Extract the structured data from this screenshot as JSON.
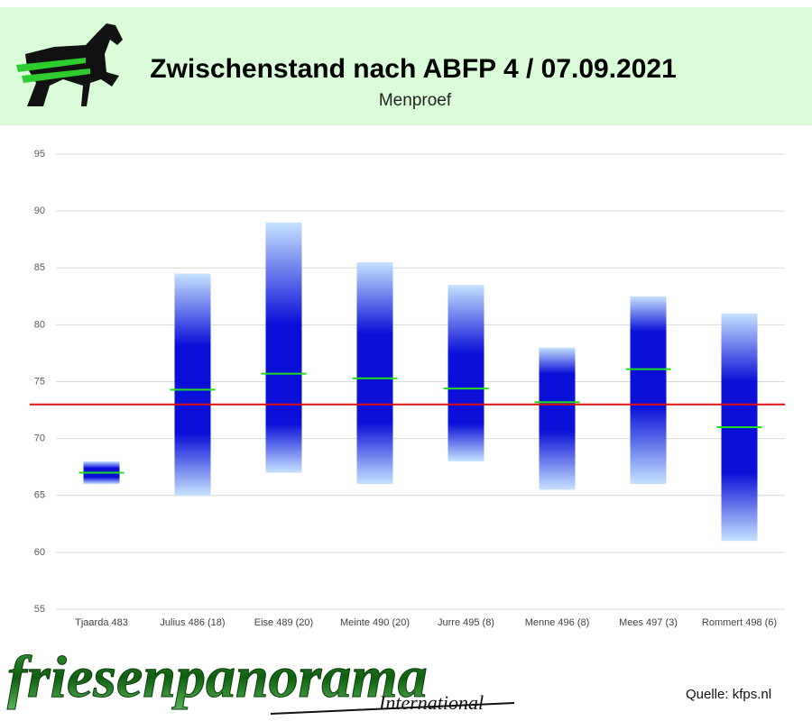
{
  "chart_data": {
    "type": "floating_bar",
    "title": "Zwischenstand nach ABFP 4 / 07.09.2021",
    "subtitle": "Menproef",
    "categories": [
      "Tjaarda 483",
      "Julius 486 (18)",
      "Eise 489 (20)",
      "Meinte 490 (20)",
      "Jurre 495 (8)",
      "Menne 496 (8)",
      "Mees 497 (3)",
      "Rommert 498 (6)"
    ],
    "low": [
      66,
      65,
      67,
      66,
      68,
      65.5,
      66,
      61
    ],
    "high": [
      68,
      84.5,
      89,
      85.5,
      83.5,
      78,
      82.5,
      81
    ],
    "mean": [
      67,
      74.3,
      75.7,
      75.3,
      74.4,
      73.2,
      76.1,
      71
    ],
    "reference_line": 73,
    "bar_color": "#0a10d8",
    "bar_fade_color": "#c6e2ff",
    "mean_color": "#22dd22",
    "reference_color": "#e01010",
    "ylim": [
      55,
      95
    ],
    "yticks": [
      55,
      60,
      65,
      70,
      75,
      80,
      85,
      90,
      95
    ],
    "grid": true
  },
  "footer": {
    "logo": "friesenpanorama",
    "logo_sub": "International",
    "source": "Quelle: kfps.nl"
  }
}
